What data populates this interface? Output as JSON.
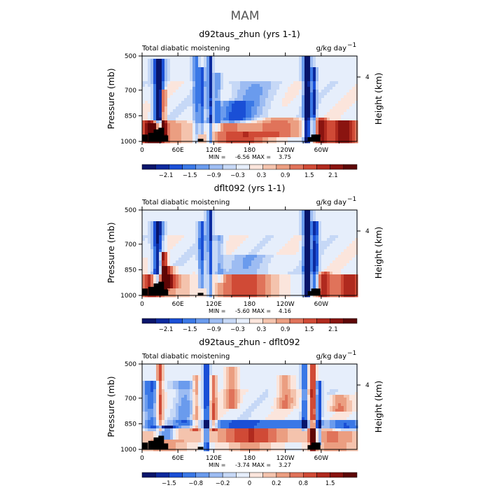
{
  "figure": {
    "title": "MAM"
  },
  "chart_data": [
    {
      "type": "heatmap",
      "title": "d92taus_zhun (yrs 1-1)",
      "left_string": "Total diabatic moistening",
      "units": "g/kg day",
      "units_exponent": "−1",
      "ylabel": "Pressure (mb)",
      "ylabel_right": "Height (km)",
      "y_ticks": [
        "500",
        "700",
        "850",
        "1000"
      ],
      "y_right_ticks": [
        "4"
      ],
      "x_ticks": [
        "0",
        "60E",
        "120E",
        "180",
        "120W",
        "60W"
      ],
      "stats": {
        "min_label": "MIN =",
        "min": "-6.56",
        "max_label": "MAX =",
        "max": "3.75"
      },
      "colorbar": {
        "labels": [
          "−2.1",
          "−1.5",
          "−0.9",
          "−0.3",
          "0.3",
          "0.9",
          "1.5",
          "2.1"
        ],
        "colors": [
          "#08156b",
          "#0c2a9e",
          "#1a4fd6",
          "#3a78e6",
          "#6a9bed",
          "#9dbcf2",
          "#c6d8f6",
          "#e6eefb",
          "#fbe5dc",
          "#f4c3ad",
          "#eb9e81",
          "#e0735a",
          "#d04a36",
          "#b02a1e",
          "#8a1410",
          "#5e0505"
        ]
      },
      "features": [
        {
          "lon": 28,
          "p_top": 520,
          "p_bot": 960,
          "w": 6,
          "v": -3.2
        },
        {
          "lon": 36,
          "p_top": 700,
          "p_bot": 980,
          "w": 3,
          "v": 3.0
        },
        {
          "lon": 15,
          "p_top": 880,
          "p_bot": 1000,
          "w": 14,
          "v": 1.8
        },
        {
          "lon": 90,
          "p_top": 500,
          "p_bot": 1000,
          "w": 3,
          "v": -1.4
        },
        {
          "lon": 100,
          "p_top": 560,
          "p_bot": 960,
          "w": 4,
          "v": -1.8
        },
        {
          "lon": 114,
          "p_top": 500,
          "p_bot": 1000,
          "w": 3,
          "v": -2.2
        },
        {
          "lon": 126,
          "p_top": 600,
          "p_bot": 940,
          "w": 4,
          "v": -1.2
        },
        {
          "lon": 150,
          "p_top": 760,
          "p_bot": 900,
          "w": 18,
          "v": -1.2
        },
        {
          "lon": 180,
          "p_top": 650,
          "p_bot": 950,
          "w": 25,
          "v": -1.0
        },
        {
          "lon": 140,
          "p_top": 900,
          "p_bot": 1000,
          "w": 40,
          "v": 1.2
        },
        {
          "lon": 235,
          "p_top": 860,
          "p_bot": 970,
          "w": 30,
          "v": 1.3
        },
        {
          "lon": 276,
          "p_top": 500,
          "p_bot": 1000,
          "w": 4,
          "v": -3.5
        },
        {
          "lon": 288,
          "p_top": 560,
          "p_bot": 980,
          "w": 3,
          "v": -2.0
        },
        {
          "lon": 300,
          "p_top": 860,
          "p_bot": 1000,
          "w": 8,
          "v": 1.6
        },
        {
          "lon": 340,
          "p_top": 880,
          "p_bot": 1000,
          "w": 16,
          "v": 1.7
        },
        {
          "lon": 20,
          "p_top": 900,
          "p_bot": 1000,
          "w": 8,
          "v": 2.0
        }
      ],
      "topography": [
        {
          "lon": 5,
          "p_top": 960
        },
        {
          "lon": 15,
          "p_top": 950
        },
        {
          "lon": 24,
          "p_top": 930
        },
        {
          "lon": 32,
          "p_top": 920
        },
        {
          "lon": 39,
          "p_top": 965
        },
        {
          "lon": 98,
          "p_top": 985
        },
        {
          "lon": 282,
          "p_top": 975
        },
        {
          "lon": 288,
          "p_top": 960
        },
        {
          "lon": 294,
          "p_top": 960
        }
      ]
    },
    {
      "type": "heatmap",
      "title": "dflt092 (yrs 1-1)",
      "left_string": "Total diabatic moistening",
      "units": "g/kg day",
      "units_exponent": "−1",
      "ylabel": "Pressure (mb)",
      "ylabel_right": "Height (km)",
      "y_ticks": [
        "500",
        "700",
        "850",
        "1000"
      ],
      "y_right_ticks": [
        "4"
      ],
      "x_ticks": [
        "0",
        "60E",
        "120E",
        "180",
        "120W",
        "60W"
      ],
      "stats": {
        "min_label": "MIN =",
        "min": "-5.60",
        "max_label": "MAX =",
        "max": "4.16"
      },
      "colorbar": {
        "labels": [
          "−2.1",
          "−1.5",
          "−0.9",
          "−0.3",
          "0.3",
          "0.9",
          "1.5",
          "2.1"
        ],
        "colors": [
          "#08156b",
          "#0c2a9e",
          "#1a4fd6",
          "#3a78e6",
          "#6a9bed",
          "#9dbcf2",
          "#c6d8f6",
          "#e6eefb",
          "#fbe5dc",
          "#f4c3ad",
          "#eb9e81",
          "#e0735a",
          "#d04a36",
          "#b02a1e",
          "#8a1410",
          "#5e0505"
        ]
      },
      "features": [
        {
          "lon": 26,
          "p_top": 560,
          "p_bot": 960,
          "w": 6,
          "v": -2.6
        },
        {
          "lon": 36,
          "p_top": 740,
          "p_bot": 980,
          "w": 4,
          "v": 3.2
        },
        {
          "lon": 45,
          "p_top": 820,
          "p_bot": 960,
          "w": 8,
          "v": 2.0
        },
        {
          "lon": 100,
          "p_top": 560,
          "p_bot": 960,
          "w": 4,
          "v": -1.8
        },
        {
          "lon": 114,
          "p_top": 500,
          "p_bot": 1000,
          "w": 3,
          "v": -2.0
        },
        {
          "lon": 130,
          "p_top": 640,
          "p_bot": 930,
          "w": 5,
          "v": -1.0
        },
        {
          "lon": 180,
          "p_top": 760,
          "p_bot": 880,
          "w": 30,
          "v": -0.8
        },
        {
          "lon": 160,
          "p_top": 880,
          "p_bot": 1000,
          "w": 40,
          "v": 1.0
        },
        {
          "lon": 276,
          "p_top": 500,
          "p_bot": 1000,
          "w": 4,
          "v": -3.8
        },
        {
          "lon": 290,
          "p_top": 560,
          "p_bot": 980,
          "w": 4,
          "v": -2.2
        },
        {
          "lon": 305,
          "p_top": 860,
          "p_bot": 1000,
          "w": 8,
          "v": 1.5
        },
        {
          "lon": 350,
          "p_top": 880,
          "p_bot": 1000,
          "w": 12,
          "v": 1.6
        },
        {
          "lon": 15,
          "p_top": 880,
          "p_bot": 1000,
          "w": 12,
          "v": 1.5
        }
      ],
      "topography": [
        {
          "lon": 5,
          "p_top": 960
        },
        {
          "lon": 15,
          "p_top": 950
        },
        {
          "lon": 24,
          "p_top": 930
        },
        {
          "lon": 32,
          "p_top": 920
        },
        {
          "lon": 39,
          "p_top": 965
        },
        {
          "lon": 98,
          "p_top": 985
        },
        {
          "lon": 282,
          "p_top": 975
        },
        {
          "lon": 288,
          "p_top": 960
        },
        {
          "lon": 294,
          "p_top": 960
        }
      ]
    },
    {
      "type": "heatmap",
      "title": "d92taus_zhun - dflt092",
      "left_string": "Total diabatic moistening",
      "units": "g/kg day",
      "units_exponent": "−1",
      "ylabel": "Pressure (mb)",
      "ylabel_right": "Height (km)",
      "y_ticks": [
        "500",
        "700",
        "850",
        "1000"
      ],
      "y_right_ticks": [
        "4"
      ],
      "x_ticks": [
        "0",
        "60E",
        "120E",
        "180",
        "120W",
        "60W"
      ],
      "stats": {
        "min_label": "MIN =",
        "min": "-3.74",
        "max_label": "MAX =",
        "max": "3.27"
      },
      "colorbar": {
        "labels": [
          "−1.5",
          "−0.8",
          "−0.2",
          "0",
          "0.2",
          "0.8",
          "1.5"
        ],
        "colors": [
          "#08156b",
          "#0c2a9e",
          "#1a4fd6",
          "#3a78e6",
          "#6a9bed",
          "#9dbcf2",
          "#c6d8f6",
          "#e6eefb",
          "#fbe5dc",
          "#f4c3ad",
          "#eb9e81",
          "#e0735a",
          "#d04a36",
          "#b02a1e",
          "#8a1410",
          "#5e0505"
        ]
      },
      "features": [
        {
          "lon": 15,
          "p_top": 600,
          "p_bot": 900,
          "w": 10,
          "v": -1.6
        },
        {
          "lon": 30,
          "p_top": 500,
          "p_bot": 900,
          "w": 4,
          "v": 2.0
        },
        {
          "lon": 40,
          "p_top": 860,
          "p_bot": 950,
          "w": 12,
          "v": -2.5
        },
        {
          "lon": 70,
          "p_top": 600,
          "p_bot": 860,
          "w": 12,
          "v": -1.0
        },
        {
          "lon": 90,
          "p_top": 560,
          "p_bot": 900,
          "w": 4,
          "v": 1.4
        },
        {
          "lon": 108,
          "p_top": 500,
          "p_bot": 1000,
          "w": 3,
          "v": -2.4
        },
        {
          "lon": 120,
          "p_top": 560,
          "p_bot": 900,
          "w": 4,
          "v": 1.6
        },
        {
          "lon": 150,
          "p_top": 520,
          "p_bot": 760,
          "w": 8,
          "v": 1.4
        },
        {
          "lon": 190,
          "p_top": 820,
          "p_bot": 880,
          "w": 80,
          "v": -1.8
        },
        {
          "lon": 190,
          "p_top": 880,
          "p_bot": 960,
          "w": 80,
          "v": 1.0
        },
        {
          "lon": 240,
          "p_top": 560,
          "p_bot": 760,
          "w": 10,
          "v": 1.2
        },
        {
          "lon": 272,
          "p_top": 500,
          "p_bot": 900,
          "w": 3,
          "v": -2.0
        },
        {
          "lon": 286,
          "p_top": 500,
          "p_bot": 1000,
          "w": 4,
          "v": 2.4
        },
        {
          "lon": 296,
          "p_top": 600,
          "p_bot": 980,
          "w": 3,
          "v": -2.2
        },
        {
          "lon": 330,
          "p_top": 680,
          "p_bot": 780,
          "w": 12,
          "v": 1.2
        },
        {
          "lon": 340,
          "p_top": 820,
          "p_bot": 900,
          "w": 20,
          "v": -1.5
        }
      ],
      "topography": [
        {
          "lon": 5,
          "p_top": 960
        },
        {
          "lon": 15,
          "p_top": 950
        },
        {
          "lon": 24,
          "p_top": 930
        },
        {
          "lon": 32,
          "p_top": 920
        },
        {
          "lon": 39,
          "p_top": 965
        },
        {
          "lon": 98,
          "p_top": 985
        },
        {
          "lon": 282,
          "p_top": 975
        },
        {
          "lon": 288,
          "p_top": 960
        },
        {
          "lon": 294,
          "p_top": 960
        }
      ]
    }
  ]
}
